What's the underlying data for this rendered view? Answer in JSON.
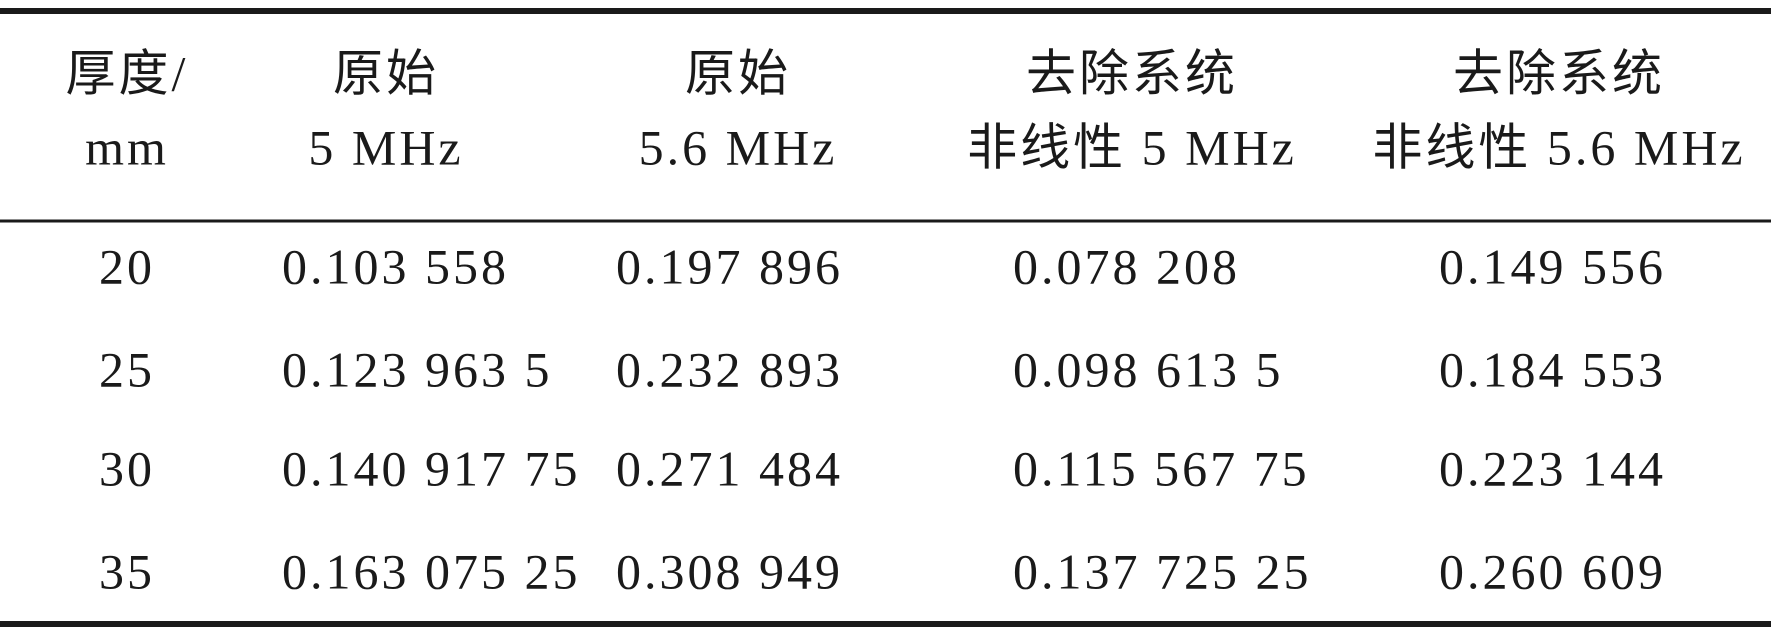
{
  "table": {
    "header": [
      [
        "厚度/",
        "mm"
      ],
      [
        "原始",
        "5 MHz"
      ],
      [
        "原始",
        "5.6 MHz"
      ],
      [
        "去除系统",
        "非线性 5 MHz"
      ],
      [
        "去除系统",
        "非线性 5.6 MHz"
      ]
    ],
    "rows": [
      [
        "20",
        "0.103 558",
        "0.197 896",
        "0.078 208",
        "0.149 556"
      ],
      [
        "25",
        "0.123 963 5",
        "0.232 893",
        "0.098 613 5",
        "0.184 553"
      ],
      [
        "30",
        "0.140 917 75",
        "0.271 484",
        "0.115 567 75",
        "0.223 144"
      ],
      [
        "35",
        "0.163 075 25",
        "0.308 949",
        "0.137 725 25",
        "0.260 609"
      ]
    ]
  }
}
